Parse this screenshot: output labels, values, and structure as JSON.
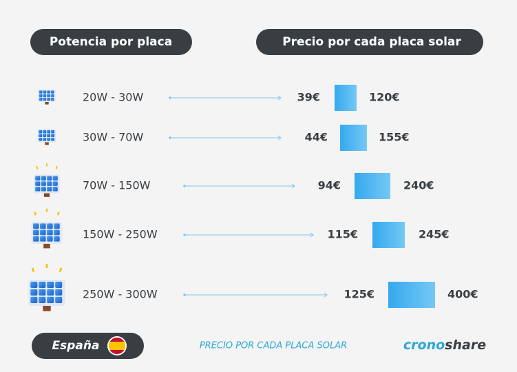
{
  "header": {
    "left": "Potencia por placa",
    "right": "Precio por cada placa solar"
  },
  "rows": [
    {
      "power": "20W - 30W",
      "min": "39€",
      "max": "120€"
    },
    {
      "power": "30W - 70W",
      "min": "44€",
      "max": "155€"
    },
    {
      "power": "70W - 150W",
      "min": "94€",
      "max": "240€"
    },
    {
      "power": "150W - 250W",
      "min": "115€",
      "max": "245€"
    },
    {
      "power": "250W - 300W",
      "min": "125€",
      "max": "400€"
    }
  ],
  "footer": {
    "country": "España",
    "caption": "PRECIO POR CADA PLACA SOLAR",
    "brand_a": "crono",
    "brand_b": "share"
  }
}
